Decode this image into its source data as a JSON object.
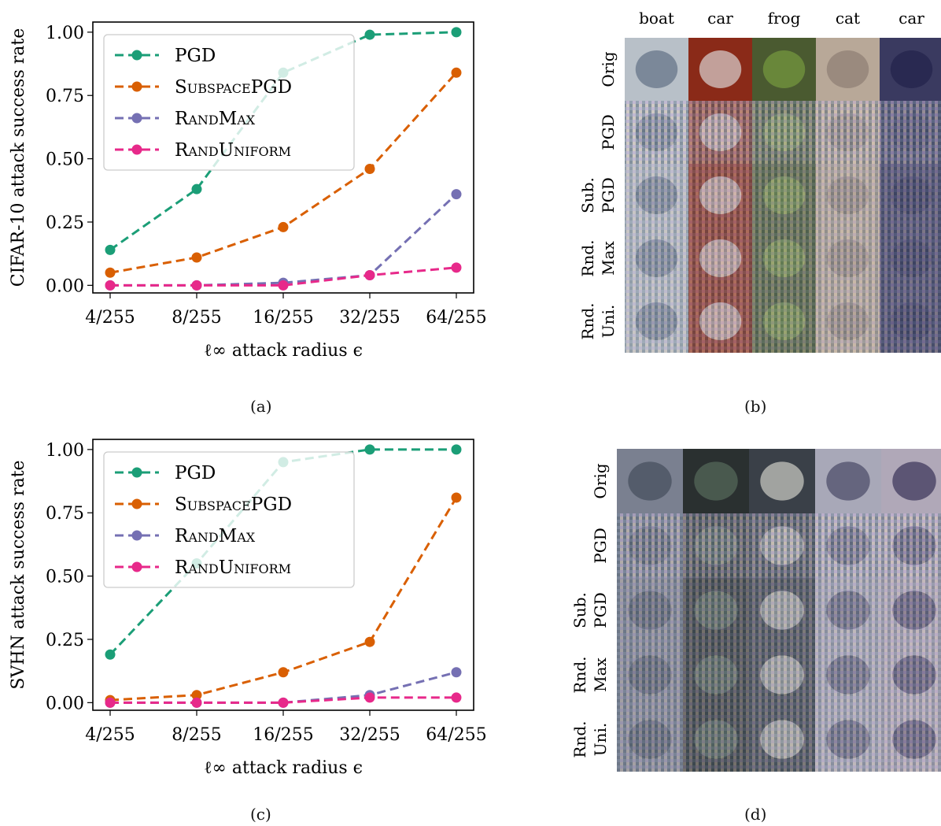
{
  "colors": {
    "pgd": "#1b9e77",
    "subspace_pgd": "#d95f02",
    "rand_max": "#7570b3",
    "rand_uniform": "#e7298a"
  },
  "chart_data": [
    {
      "type": "line",
      "panel": "(a)",
      "categories": [
        "4/255",
        "8/255",
        "16/255",
        "32/255",
        "64/255"
      ],
      "xlabel": "ℓ∞ attack radius ϵ",
      "ylabel": "CIFAR-10 attack success rate",
      "ylim": [
        -0.03,
        1.04
      ],
      "yticks": [
        "0.00",
        "0.25",
        "0.50",
        "0.75",
        "1.00"
      ],
      "legend_position": "upper-left",
      "series": [
        {
          "name": "PGD",
          "key": "pgd",
          "values": [
            0.14,
            0.38,
            0.84,
            0.99,
            1.0
          ]
        },
        {
          "name": "SubspacePGD",
          "key": "subspace_pgd",
          "values": [
            0.05,
            0.11,
            0.23,
            0.46,
            0.84
          ]
        },
        {
          "name": "RandMax",
          "key": "rand_max",
          "values": [
            0.0,
            0.0,
            0.01,
            0.04,
            0.36
          ]
        },
        {
          "name": "RandUniform",
          "key": "rand_uniform",
          "values": [
            0.0,
            0.0,
            0.0,
            0.04,
            0.07
          ]
        }
      ]
    },
    {
      "type": "line",
      "panel": "(c)",
      "categories": [
        "4/255",
        "8/255",
        "16/255",
        "32/255",
        "64/255"
      ],
      "xlabel": "ℓ∞ attack radius ϵ",
      "ylabel": "SVHN attack success rate",
      "ylim": [
        -0.03,
        1.04
      ],
      "yticks": [
        "0.00",
        "0.25",
        "0.50",
        "0.75",
        "1.00"
      ],
      "legend_position": "upper-left",
      "series": [
        {
          "name": "PGD",
          "key": "pgd",
          "values": [
            0.19,
            0.55,
            0.95,
            1.0,
            1.0
          ]
        },
        {
          "name": "SubspacePGD",
          "key": "subspace_pgd",
          "values": [
            0.01,
            0.03,
            0.12,
            0.24,
            0.81
          ]
        },
        {
          "name": "RandMax",
          "key": "rand_max",
          "values": [
            0.0,
            0.0,
            0.0,
            0.03,
            0.12
          ]
        },
        {
          "name": "RandUniform",
          "key": "rand_uniform",
          "values": [
            0.0,
            0.0,
            0.0,
            0.02,
            0.02
          ]
        }
      ]
    }
  ],
  "grids": {
    "b": {
      "columns": [
        "boat",
        "car",
        "frog",
        "cat",
        "car"
      ],
      "rows": [
        [
          "Orig"
        ],
        [
          "PGD"
        ],
        [
          "Sub.",
          "PGD"
        ],
        [
          "Rnd.",
          "Max"
        ],
        [
          "Rnd.",
          "Uni."
        ]
      ]
    },
    "d": {
      "columns": [],
      "rows": [
        [
          "Orig"
        ],
        [
          "PGD"
        ],
        [
          "Sub.",
          "PGD"
        ],
        [
          "Rnd.",
          "Max"
        ],
        [
          "Rnd.",
          "Uni."
        ]
      ]
    }
  },
  "captions": {
    "a": "(a)",
    "b": "(b)",
    "c": "(c)",
    "d": "(d)"
  }
}
